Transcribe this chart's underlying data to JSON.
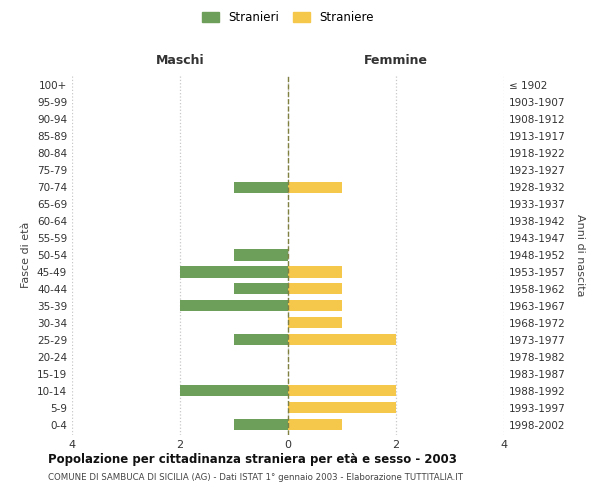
{
  "age_groups": [
    "0-4",
    "5-9",
    "10-14",
    "15-19",
    "20-24",
    "25-29",
    "30-34",
    "35-39",
    "40-44",
    "45-49",
    "50-54",
    "55-59",
    "60-64",
    "65-69",
    "70-74",
    "75-79",
    "80-84",
    "85-89",
    "90-94",
    "95-99",
    "100+"
  ],
  "birth_years": [
    "1998-2002",
    "1993-1997",
    "1988-1992",
    "1983-1987",
    "1978-1982",
    "1973-1977",
    "1968-1972",
    "1963-1967",
    "1958-1962",
    "1953-1957",
    "1948-1952",
    "1943-1947",
    "1938-1942",
    "1933-1937",
    "1928-1932",
    "1923-1927",
    "1918-1922",
    "1913-1917",
    "1908-1912",
    "1903-1907",
    "≤ 1902"
  ],
  "maschi": [
    1,
    0,
    2,
    0,
    0,
    1,
    0,
    2,
    1,
    2,
    1,
    0,
    0,
    0,
    1,
    0,
    0,
    0,
    0,
    0,
    0
  ],
  "femmine": [
    1,
    2,
    2,
    0,
    0,
    2,
    1,
    1,
    1,
    1,
    0,
    0,
    0,
    0,
    1,
    0,
    0,
    0,
    0,
    0,
    0
  ],
  "color_maschi": "#6d9e5a",
  "color_femmine": "#f5c84c",
  "color_center_line": "#808040",
  "title_main": "Popolazione per cittadinanza straniera per età e sesso - 2003",
  "title_sub": "COMUNE DI SAMBUCA DI SICILIA (AG) - Dati ISTAT 1° gennaio 2003 - Elaborazione TUTTITALIA.IT",
  "ylabel_left": "Fasce di età",
  "ylabel_right": "Anni di nascita",
  "xlabel_maschi": "Maschi",
  "xlabel_femmine": "Femmine",
  "legend_maschi": "Stranieri",
  "legend_femmine": "Straniere",
  "xlim": 4,
  "background_color": "#ffffff",
  "grid_color": "#c8c8c8"
}
